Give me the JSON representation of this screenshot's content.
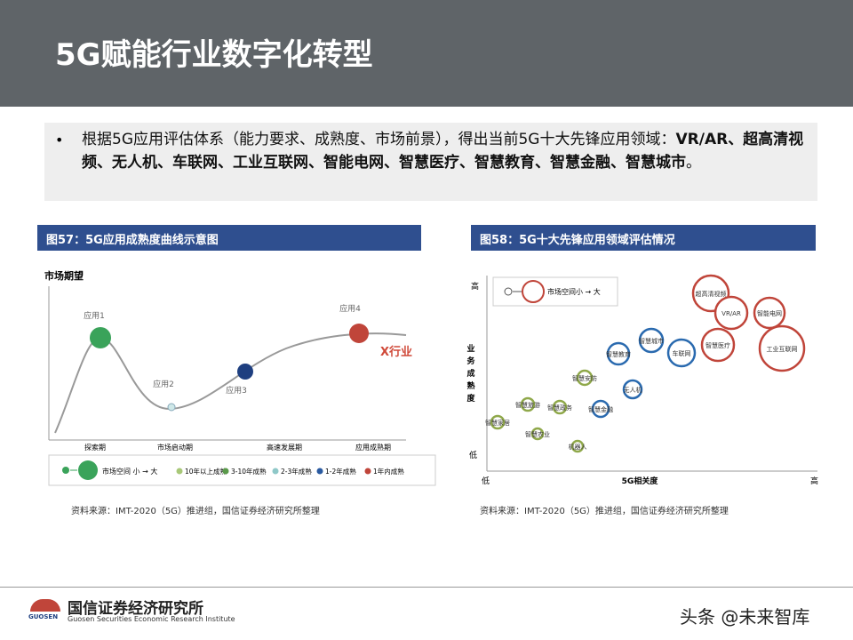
{
  "header": {
    "title": "5G赋能行业数字化转型"
  },
  "bullet": {
    "intro": "根据5G应用评估体系（能力要求、成熟度、市场前景），得出当前5G十大先锋应用领域：",
    "bold": "VR/AR、超高清视频、无人机、车联网、工业互联网、智能电网、智慧医疗、智慧教育、智慧金融、智慧城市",
    "end": "。"
  },
  "figures": [
    {
      "title": "图57：5G应用成熟度曲线示意图",
      "y_label": "市场期望",
      "apps": [
        "应用1",
        "应用2",
        "应用3",
        "应用4"
      ],
      "industry": "X行业",
      "phases": [
        "探索期",
        "市场启动期",
        "高速发展期",
        "应用成熟期"
      ],
      "size_legend": "市场空间 小 → 大",
      "maturity_legend": [
        "10年以上成熟",
        "3-10年成熟",
        "2-3年成熟",
        "1-2年成熟",
        "1年内成熟"
      ],
      "source": "资料来源：IMT-2020（5G）推进组，国信证券经济研究所整理"
    },
    {
      "title": "图58：5G十大先锋应用领域评估情况",
      "y_high": "高",
      "y_label": "业务成熟度",
      "y_low": "低",
      "x_low": "低",
      "x_label": "5G相关度",
      "x_high": "高",
      "size_legend": "市场空间小 → 大",
      "bubbles": [
        "超高清视频",
        "VR/AR",
        "智能电网",
        "工业互联网",
        "智慧医疗",
        "车联网",
        "智慧城市",
        "智慧教育",
        "无人机",
        "智慧安防",
        "智慧金融",
        "智慧旅游",
        "智慧家居",
        "智慧政务",
        "智慧农业",
        "机器人"
      ],
      "source": "资料来源：IMT-2020（5G）推进组，国信证券经济研究所整理"
    }
  ],
  "footer": {
    "logo": "GUOSEN",
    "org": "国信证券经济研究所",
    "org_en": "Guosen Securities Economic Research Institute",
    "watermark": "头条 @未来智库"
  }
}
